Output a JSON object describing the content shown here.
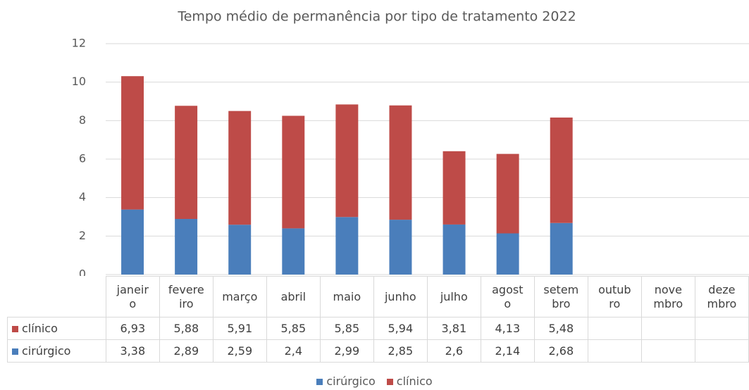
{
  "chart_data": {
    "type": "stacked_bar",
    "title": "Tempo médio de permanência por tipo de tratamento 2022",
    "categories": [
      "janeiro",
      "fevereiro",
      "março",
      "abril",
      "maio",
      "junho",
      "julho",
      "agosto",
      "setembro",
      "outubro",
      "novembro",
      "dezembro"
    ],
    "series": [
      {
        "name": "cirúrgico",
        "color": "#4a7ebb",
        "values": [
          3.38,
          2.89,
          2.59,
          2.4,
          2.99,
          2.85,
          2.6,
          2.14,
          2.68,
          null,
          null,
          null
        ],
        "value_labels": [
          "3,38",
          "2,89",
          "2,59",
          "2,4",
          "2,99",
          "2,85",
          "2,6",
          "2,14",
          "2,68",
          null,
          null,
          null
        ]
      },
      {
        "name": "clínico",
        "color": "#be4b48",
        "values": [
          6.93,
          5.88,
          5.91,
          5.85,
          5.85,
          5.94,
          3.81,
          4.13,
          5.48,
          null,
          null,
          null
        ],
        "value_labels": [
          "6,93",
          "5,88",
          "5,91",
          "5,85",
          "5,85",
          "5,94",
          "3,81",
          "4,13",
          "5,48",
          null,
          null,
          null
        ]
      }
    ],
    "ylim": [
      0,
      12
    ],
    "yticks": [
      0,
      2,
      4,
      6,
      8,
      10,
      12
    ],
    "grid": true,
    "data_table": true,
    "legend": "bottom"
  }
}
